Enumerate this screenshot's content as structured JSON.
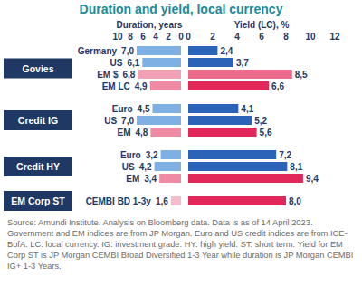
{
  "chart_data": {
    "type": "bar",
    "orientation": "horizontal",
    "title": "Duration and yield, local currency",
    "xlabel": "Duration, years",
    "x2label": "Yield (LC), %",
    "categories": [
      "Germany",
      "US",
      "EM $",
      "EM LC",
      "Euro",
      "US",
      "EM",
      "Euro",
      "US",
      "EM",
      "CEMBI BD 1-3y"
    ],
    "category_groups": [
      "Govies",
      "Govies",
      "Govies",
      "Govies",
      "Credit IG",
      "Credit IG",
      "Credit IG",
      "Credit HY",
      "Credit HY",
      "Credit HY",
      "EM Corp ST"
    ],
    "xlim": [
      0,
      10
    ],
    "xticks": [
      0,
      2,
      4,
      6,
      8,
      10
    ],
    "x2lim": [
      0,
      12
    ],
    "x2ticks": [
      0,
      2,
      4,
      6,
      8,
      10,
      12
    ],
    "data_labels": true,
    "series": [
      {
        "axis": "x",
        "values": [
          7.0,
          6.1,
          6.8,
          4.9,
          4.5,
          7.0,
          4.8,
          3.2,
          4.2,
          3.4,
          1.6
        ],
        "value_labels": [
          "7,0",
          "6,1",
          "6,8",
          "4,9",
          "4,5",
          "7,0",
          "4,8",
          "3,2",
          "4,2",
          "3,4",
          "1,6"
        ],
        "colors": [
          "#7fb0e3",
          "#7fb0e3",
          "#f2a0b5",
          "#ee8aa4",
          "#7fb0e3",
          "#7fb0e3",
          "#ee8aa4",
          "#7fb0e3",
          "#7fb0e3",
          "#ee8aa4",
          "#f5bccb"
        ]
      },
      {
        "axis": "x2",
        "values": [
          2.4,
          3.7,
          8.5,
          6.6,
          4.1,
          5.2,
          5.6,
          7.2,
          8.1,
          9.4,
          8.0
        ],
        "value_labels": [
          "2,4",
          "3,7",
          "8,5",
          "6,6",
          "4,1",
          "5,2",
          "5,6",
          "7,2",
          "8,1",
          "9,4",
          "8,0"
        ],
        "colors": [
          "#2a63b8",
          "#2a63b8",
          "#ec6a8b",
          "#e2285a",
          "#2a63b8",
          "#2a63b8",
          "#e2285a",
          "#2a63b8",
          "#2a63b8",
          "#e2285a",
          "#e2285a"
        ]
      }
    ],
    "source": "Source: Amundi Institute. Analysis on Bloomberg data. Data is as of 14 April 2023. Government and EM indices are from JP Morgan. Euro and US credit indices are from ICE-BofA. LC: local currency. IG: investment grade. HY: high yield. ST: short term. Yield for EM Corp ST is JP Morgan CEMBI Broad Diversified 1-3 Year while duration is JP Morgan CEMBI IG+ 1-3 Years."
  }
}
